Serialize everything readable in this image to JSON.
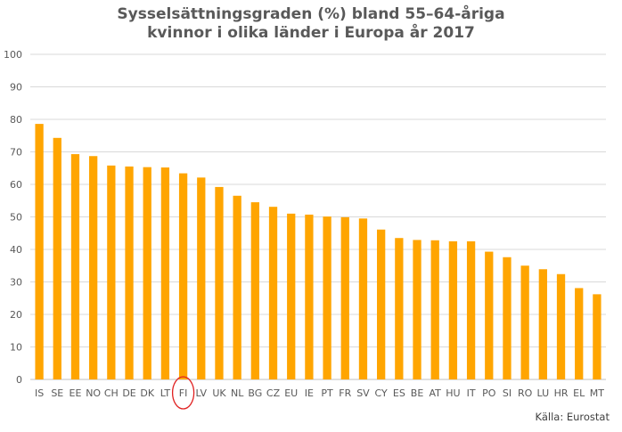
{
  "chart_data": {
    "type": "bar",
    "title_line1": "Sysselsättningsgraden (%) bland 55–64-åriga",
    "title_line2": "kvinnor i olika länder i Europa år 2017",
    "categories": [
      "IS",
      "SE",
      "EE",
      "NO",
      "CH",
      "DE",
      "DK",
      "LT",
      "FI",
      "LV",
      "UK",
      "NL",
      "BG",
      "CZ",
      "EU",
      "IE",
      "PT",
      "FR",
      "SV",
      "CY",
      "ES",
      "BE",
      "AT",
      "HU",
      "IT",
      "PO",
      "SI",
      "RO",
      "LU",
      "HR",
      "EL",
      "MT"
    ],
    "values": [
      78.6,
      74.3,
      69.3,
      68.7,
      65.8,
      65.5,
      65.3,
      65.2,
      63.4,
      62.1,
      59.2,
      56.5,
      54.5,
      53.1,
      51.0,
      50.7,
      50.1,
      49.9,
      49.5,
      46.1,
      43.5,
      42.9,
      42.8,
      42.5,
      42.5,
      39.3,
      37.6,
      35.0,
      33.9,
      32.4,
      28.1,
      26.2
    ],
    "ylim": [
      0,
      100
    ],
    "yticks": [
      0,
      10,
      20,
      30,
      40,
      50,
      60,
      70,
      80,
      90,
      100
    ],
    "grid": true,
    "bar_color": "#FFA500",
    "highlight_category": "FI",
    "highlight_color": "#E02020",
    "source": "Källa: Eurostat"
  }
}
